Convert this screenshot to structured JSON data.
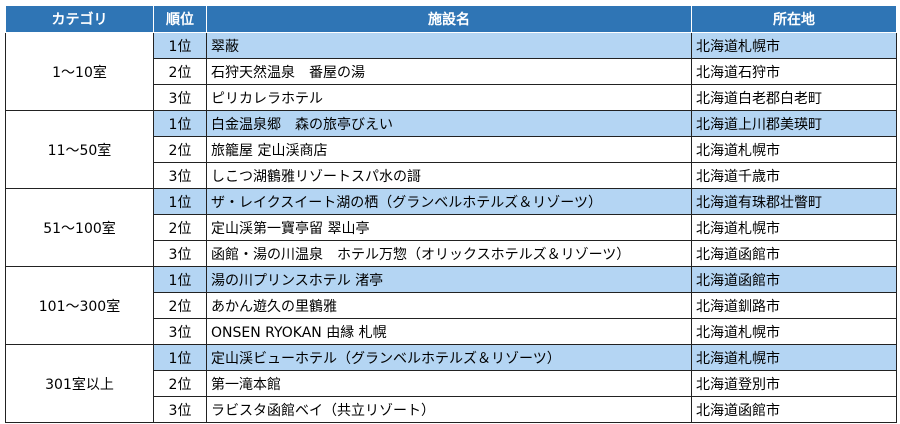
{
  "headers": {
    "category": "カテゴリ",
    "rank": "順位",
    "facility": "施設名",
    "location": "所在地"
  },
  "groups": [
    {
      "category": "1～10室",
      "rows": [
        {
          "rank": "1位",
          "name": "翠蔽",
          "location": "北海道札幌市"
        },
        {
          "rank": "2位",
          "name": "石狩天然温泉　番屋の湯",
          "location": "北海道石狩市"
        },
        {
          "rank": "3位",
          "name": "ピリカレラホテル",
          "location": "北海道白老郡白老町"
        }
      ]
    },
    {
      "category": "11～50室",
      "rows": [
        {
          "rank": "1位",
          "name": "白金温泉郷　森の旅亭びえい",
          "location": "北海道上川郡美瑛町"
        },
        {
          "rank": "2位",
          "name": "旅籠屋 定山渓商店",
          "location": "北海道札幌市"
        },
        {
          "rank": "3位",
          "name": "しこつ湖鶴雅リゾートスパ水の謌",
          "location": "北海道千歳市"
        }
      ]
    },
    {
      "category": "51～100室",
      "rows": [
        {
          "rank": "1位",
          "name": "ザ・レイクスイート湖の栖（グランベルホテルズ＆リゾーツ）",
          "location": "北海道有珠郡壮瞥町"
        },
        {
          "rank": "2位",
          "name": "定山渓第一寶亭留 翠山亭",
          "location": "北海道札幌市"
        },
        {
          "rank": "3位",
          "name": "函館・湯の川温泉　ホテル万惣（オリックスホテルズ＆リゾーツ）",
          "location": "北海道函館市"
        }
      ]
    },
    {
      "category": "101～300室",
      "rows": [
        {
          "rank": "1位",
          "name": "湯の川プリンスホテル 渚亭",
          "location": "北海道函館市"
        },
        {
          "rank": "2位",
          "name": "あかん遊久の里鶴雅",
          "location": "北海道釧路市"
        },
        {
          "rank": "3位",
          "name": "ONSEN RYOKAN 由縁 札幌",
          "location": "北海道札幌市"
        }
      ]
    },
    {
      "category": "301室以上",
      "rows": [
        {
          "rank": "1位",
          "name": "定山渓ビューホテル（グランベルホテルズ＆リゾーツ）",
          "location": "北海道札幌市"
        },
        {
          "rank": "2位",
          "name": "第一滝本館",
          "location": "北海道登別市"
        },
        {
          "rank": "3位",
          "name": "ラビスタ函館ベイ（共立リゾート）",
          "location": "北海道函館市"
        }
      ]
    }
  ]
}
